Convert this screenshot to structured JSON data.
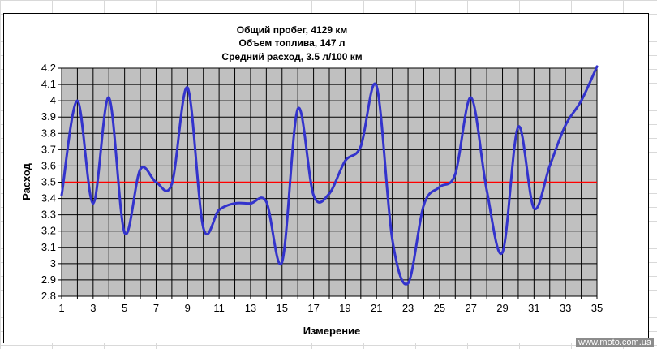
{
  "chart_data": {
    "type": "line",
    "title_lines": [
      "Общий пробег, 4129 км",
      "Объем топлива, 147 л",
      "Средний расход, 3.5 л/100 км"
    ],
    "xlabel": "Измерение",
    "ylabel": "Расход",
    "xlim": [
      1,
      35
    ],
    "ylim": [
      2.8,
      4.2
    ],
    "x_ticks": [
      1,
      3,
      5,
      7,
      9,
      11,
      13,
      15,
      17,
      19,
      21,
      23,
      25,
      27,
      29,
      31,
      33,
      35
    ],
    "y_ticks": [
      2.8,
      2.9,
      3,
      3.1,
      3.2,
      3.3,
      3.4,
      3.5,
      3.6,
      3.7,
      3.8,
      3.9,
      4,
      4.1,
      4.2
    ],
    "y_tick_labels": [
      "2.8",
      "2.9",
      "3",
      "3.1",
      "3.2",
      "3.3",
      "3.4",
      "3.5",
      "3.6",
      "3.7",
      "3.8",
      "3.9",
      "4",
      "4.1",
      "4.2"
    ],
    "grid": true,
    "plot_background": "#c0c0c0",
    "series": [
      {
        "color": "#3333cc",
        "smooth": true,
        "x": [
          1,
          2,
          3,
          4,
          5,
          6,
          7,
          8,
          9,
          10,
          11,
          12,
          13,
          14,
          15,
          16,
          17,
          18,
          19,
          20,
          21,
          22,
          23,
          24,
          25,
          26,
          27,
          28,
          29,
          30,
          31,
          32,
          33,
          34,
          35
        ],
        "values": [
          3.42,
          4.0,
          3.37,
          4.02,
          3.19,
          3.58,
          3.5,
          3.49,
          4.08,
          3.22,
          3.33,
          3.37,
          3.37,
          3.38,
          3.01,
          3.95,
          3.42,
          3.43,
          3.63,
          3.72,
          4.09,
          3.15,
          2.88,
          3.36,
          3.47,
          3.55,
          4.02,
          3.45,
          3.07,
          3.84,
          3.34,
          3.6,
          3.85,
          4.0,
          4.21
        ]
      }
    ],
    "reference_line": {
      "value": 3.5,
      "color": "#ff0000"
    }
  },
  "watermark": "www.moto.com.ua"
}
